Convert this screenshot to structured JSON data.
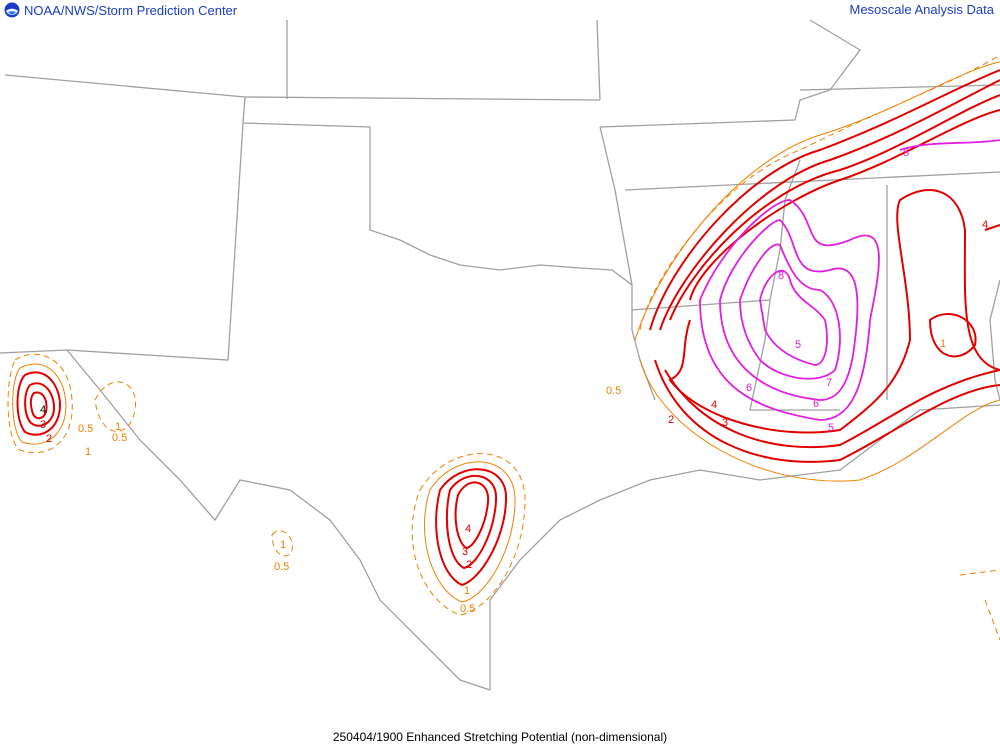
{
  "header": {
    "left_title": "NOAA/NWS/Storm Prediction Center",
    "right_title": "Mesoscale Analysis Data",
    "logo": "noaa-logo"
  },
  "footer": {
    "caption": "250404/1900 Enhanced Stretching Potential (non-dimensional)"
  },
  "colors": {
    "header_text": "#1a3cc8",
    "borders": "#a0a0a0",
    "contour_low": "#f08000",
    "contour_mid": "#e00000",
    "contour_high": "#e020e0"
  },
  "contour_labels": [
    {
      "text": "4",
      "color": "#000"
    },
    {
      "text": "3",
      "color": "#e00000"
    },
    {
      "text": "2",
      "color": "#e00000"
    },
    {
      "text": "0.5",
      "color": "#f08000"
    },
    {
      "text": "1",
      "color": "#f08000"
    },
    {
      "text": "0.5",
      "color": "#f08000"
    },
    {
      "text": "1",
      "color": "#f08000"
    },
    {
      "text": "1",
      "color": "#f08000"
    },
    {
      "text": "0.5",
      "color": "#f08000"
    },
    {
      "text": "4",
      "color": "#e00000"
    },
    {
      "text": "3",
      "color": "#e00000"
    },
    {
      "text": "2",
      "color": "#e00000"
    },
    {
      "text": "1",
      "color": "#f08000"
    },
    {
      "text": "0.5",
      "color": "#f08000"
    },
    {
      "text": "0.5",
      "color": "#f08000"
    },
    {
      "text": "2",
      "color": "#e00000"
    },
    {
      "text": "3",
      "color": "#e00000"
    },
    {
      "text": "4",
      "color": "#e00000"
    },
    {
      "text": "8",
      "color": "#e020e0"
    },
    {
      "text": "5",
      "color": "#e020e0"
    },
    {
      "text": "7",
      "color": "#e020e0"
    },
    {
      "text": "6",
      "color": "#e020e0"
    },
    {
      "text": "6",
      "color": "#e020e0"
    },
    {
      "text": "5",
      "color": "#e020e0"
    },
    {
      "text": "5",
      "color": "#e020e0"
    },
    {
      "text": "4",
      "color": "#e00000"
    },
    {
      "text": "1",
      "color": "#f08000"
    }
  ]
}
